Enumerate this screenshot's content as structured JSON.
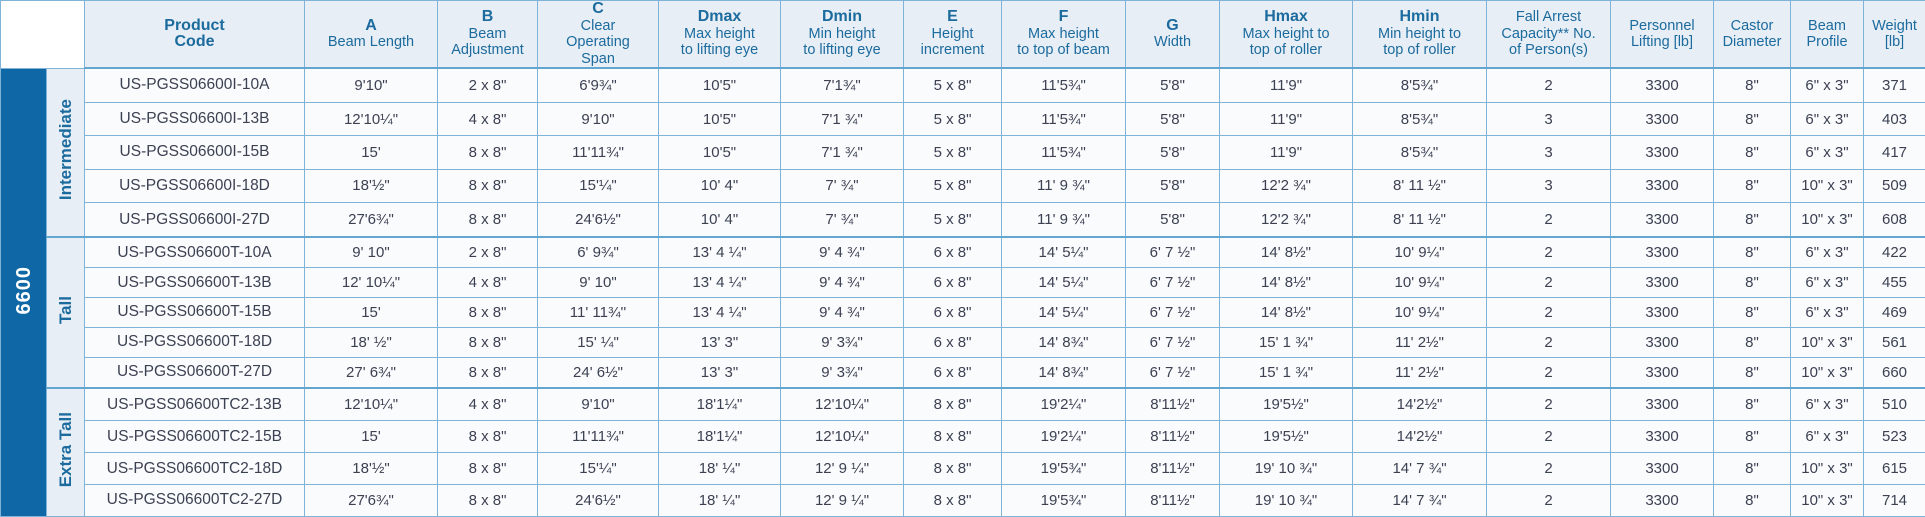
{
  "series_label": "6600",
  "colors": {
    "accent_bar": "#0f68a5",
    "header_bg": "#e8eef5",
    "header_text": "#1b6b9e",
    "grid_border": "#7fb3d7",
    "cell_text": "#3c4152"
  },
  "table": {
    "columns": [
      {
        "sym": "Product\nCode",
        "desc": ""
      },
      {
        "sym": "A",
        "desc": "Beam Length"
      },
      {
        "sym": "B",
        "desc": "Beam\nAdjustment"
      },
      {
        "sym": "C",
        "desc": "Clear\nOperating\nSpan"
      },
      {
        "sym": "Dmax",
        "desc": "Max height\nto lifting eye"
      },
      {
        "sym": "Dmin",
        "desc": "Min height\nto lifting eye"
      },
      {
        "sym": "E",
        "desc": "Height\nincrement"
      },
      {
        "sym": "F",
        "desc": "Max height\nto top of beam"
      },
      {
        "sym": "G",
        "desc": "Width"
      },
      {
        "sym": "Hmax",
        "desc": "Max height to\ntop of roller"
      },
      {
        "sym": "Hmin",
        "desc": "Min height to\ntop of roller"
      },
      {
        "sym": "",
        "desc": "Fall Arrest\nCapacity** No.\nof Person(s)"
      },
      {
        "sym": "",
        "desc": "Personnel\nLifting [lb]"
      },
      {
        "sym": "",
        "desc": "Castor\nDiameter"
      },
      {
        "sym": "",
        "desc": "Beam\nProfile"
      },
      {
        "sym": "",
        "desc": "Weight\n[lb]"
      }
    ],
    "groups": [
      {
        "label": "Intermediate",
        "rows": [
          [
            "US-PGSS06600I-10A",
            "9'10\"",
            "2 x 8\"",
            "6'9¾\"",
            "10'5\"",
            "7'1¾\"",
            "5 x 8\"",
            "11'5¾\"",
            "5'8\"",
            "11'9\"",
            "8'5¾\"",
            "2",
            "3300",
            "8\"",
            "6\" x 3\"",
            "371"
          ],
          [
            "US-PGSS06600I-13B",
            "12'10¼\"",
            "4 x 8\"",
            "9'10\"",
            "10'5\"",
            "7'1 ¾\"",
            "5 x 8\"",
            "11'5¾\"",
            "5'8\"",
            "11'9\"",
            "8'5¾\"",
            "3",
            "3300",
            "8\"",
            "6\" x 3\"",
            "403"
          ],
          [
            "US-PGSS06600I-15B",
            "15'",
            "8 x 8\"",
            "11'11¾\"",
            "10'5\"",
            "7'1 ¾\"",
            "5 x 8\"",
            "11'5¾\"",
            "5'8\"",
            "11'9\"",
            "8'5¾\"",
            "3",
            "3300",
            "8\"",
            "6\" x 3\"",
            "417"
          ],
          [
            "US-PGSS06600I-18D",
            "18'½\"",
            "8 x 8\"",
            "15'¼\"",
            "10' 4\"",
            "7' ¾\"",
            "5 x 8\"",
            "11' 9 ¾\"",
            "5'8\"",
            "12'2 ¾\"",
            "8' 11 ½\"",
            "3",
            "3300",
            "8\"",
            "10\" x 3\"",
            "509"
          ],
          [
            "US-PGSS06600I-27D",
            "27'6¾\"",
            "8 x 8\"",
            "24'6½\"",
            "10' 4\"",
            "7' ¾\"",
            "5 x 8\"",
            "11' 9 ¾\"",
            "5'8\"",
            "12'2 ¾\"",
            "8' 11 ½\"",
            "2",
            "3300",
            "8\"",
            "10\" x 3\"",
            "608"
          ]
        ]
      },
      {
        "label": "Tall",
        "rows": [
          [
            "US-PGSS06600T-10A",
            "9' 10\"",
            "2 x 8\"",
            "6' 9¾\"",
            "13' 4 ¼\"",
            "9' 4 ¾\"",
            "6 x 8\"",
            "14' 5¼\"",
            "6' 7 ½\"",
            "14' 8½\"",
            "10' 9¼\"",
            "2",
            "3300",
            "8\"",
            "6\" x 3\"",
            "422"
          ],
          [
            "US-PGSS06600T-13B",
            "12' 10¼\"",
            "4 x 8\"",
            "9' 10\"",
            "13' 4 ¼\"",
            "9' 4 ¾\"",
            "6 x 8\"",
            "14' 5¼\"",
            "6' 7 ½\"",
            "14' 8½\"",
            "10' 9¼\"",
            "2",
            "3300",
            "8\"",
            "6\" x 3\"",
            "455"
          ],
          [
            "US-PGSS06600T-15B",
            "15'",
            "8 x 8\"",
            "11' 11¾''",
            "13' 4 ¼\"",
            "9' 4 ¾\"",
            "6 x 8\"",
            "14' 5¼\"",
            "6' 7 ½\"",
            "14' 8½\"",
            "10' 9¼\"",
            "2",
            "3300",
            "8\"",
            "6\" x 3\"",
            "469"
          ],
          [
            "US-PGSS06600T-18D",
            "18' ½\"",
            "8 x 8\"",
            "15' ¼\"",
            "13' 3\"",
            "9' 3¾\"",
            "6 x 8\"",
            "14' 8¾\"",
            "6' 7 ½\"",
            "15' 1 ¾\"",
            "11' 2½\"",
            "2",
            "3300",
            "8\"",
            "10\" x 3\"",
            "561"
          ],
          [
            "US-PGSS06600T-27D",
            "27' 6¾\"",
            "8 x 8\"",
            "24' 6½\"",
            "13' 3\"",
            "9' 3¾\"",
            "6 x 8\"",
            "14' 8¾\"",
            "6' 7 ½\"",
            "15' 1 ¾\"",
            "11' 2½\"",
            "2",
            "3300",
            "8\"",
            "10\" x 3\"",
            "660"
          ]
        ]
      },
      {
        "label": "Extra Tall",
        "rows": [
          [
            "US-PGSS06600TC2-13B",
            "12'10¼\"",
            "4 x 8\"",
            "9'10\"",
            "18'1¼\"",
            "12'10¼\"",
            "8 x 8\"",
            "19'2¼\"",
            "8'11½\"",
            "19'5½\"",
            "14'2½\"",
            "2",
            "3300",
            "8\"",
            "6\" x 3\"",
            "510"
          ],
          [
            "US-PGSS06600TC2-15B",
            "15'",
            "8 x 8\"",
            "11'11¾\"",
            "18'1¼\"",
            "12'10¼\"",
            "8 x 8\"",
            "19'2¼\"",
            "8'11½\"",
            "19'5½\"",
            "14'2½\"",
            "2",
            "3300",
            "8\"",
            "6\" x 3\"",
            "523"
          ],
          [
            "US-PGSS06600TC2-18D",
            "18'½\"",
            "8 x 8\"",
            "15'¼\"",
            "18' ¼\"",
            "12' 9 ¼\"",
            "8 x 8\"",
            "19'5¾\"",
            "8'11½\"",
            "19' 10 ¾\"",
            "14' 7 ¾\"",
            "2",
            "3300",
            "8\"",
            "10\" x 3\"",
            "615"
          ],
          [
            "US-PGSS06600TC2-27D",
            "27'6¾\"",
            "8 x 8\"",
            "24'6½\"",
            "18' ¼\"",
            "12' 9 ¼\"",
            "8 x 8\"",
            "19'5¾\"",
            "8'11½\"",
            "19' 10 ¾\"",
            "14' 7 ¾\"",
            "2",
            "3300",
            "8\"",
            "10\" x 3\"",
            "714"
          ]
        ]
      }
    ]
  }
}
